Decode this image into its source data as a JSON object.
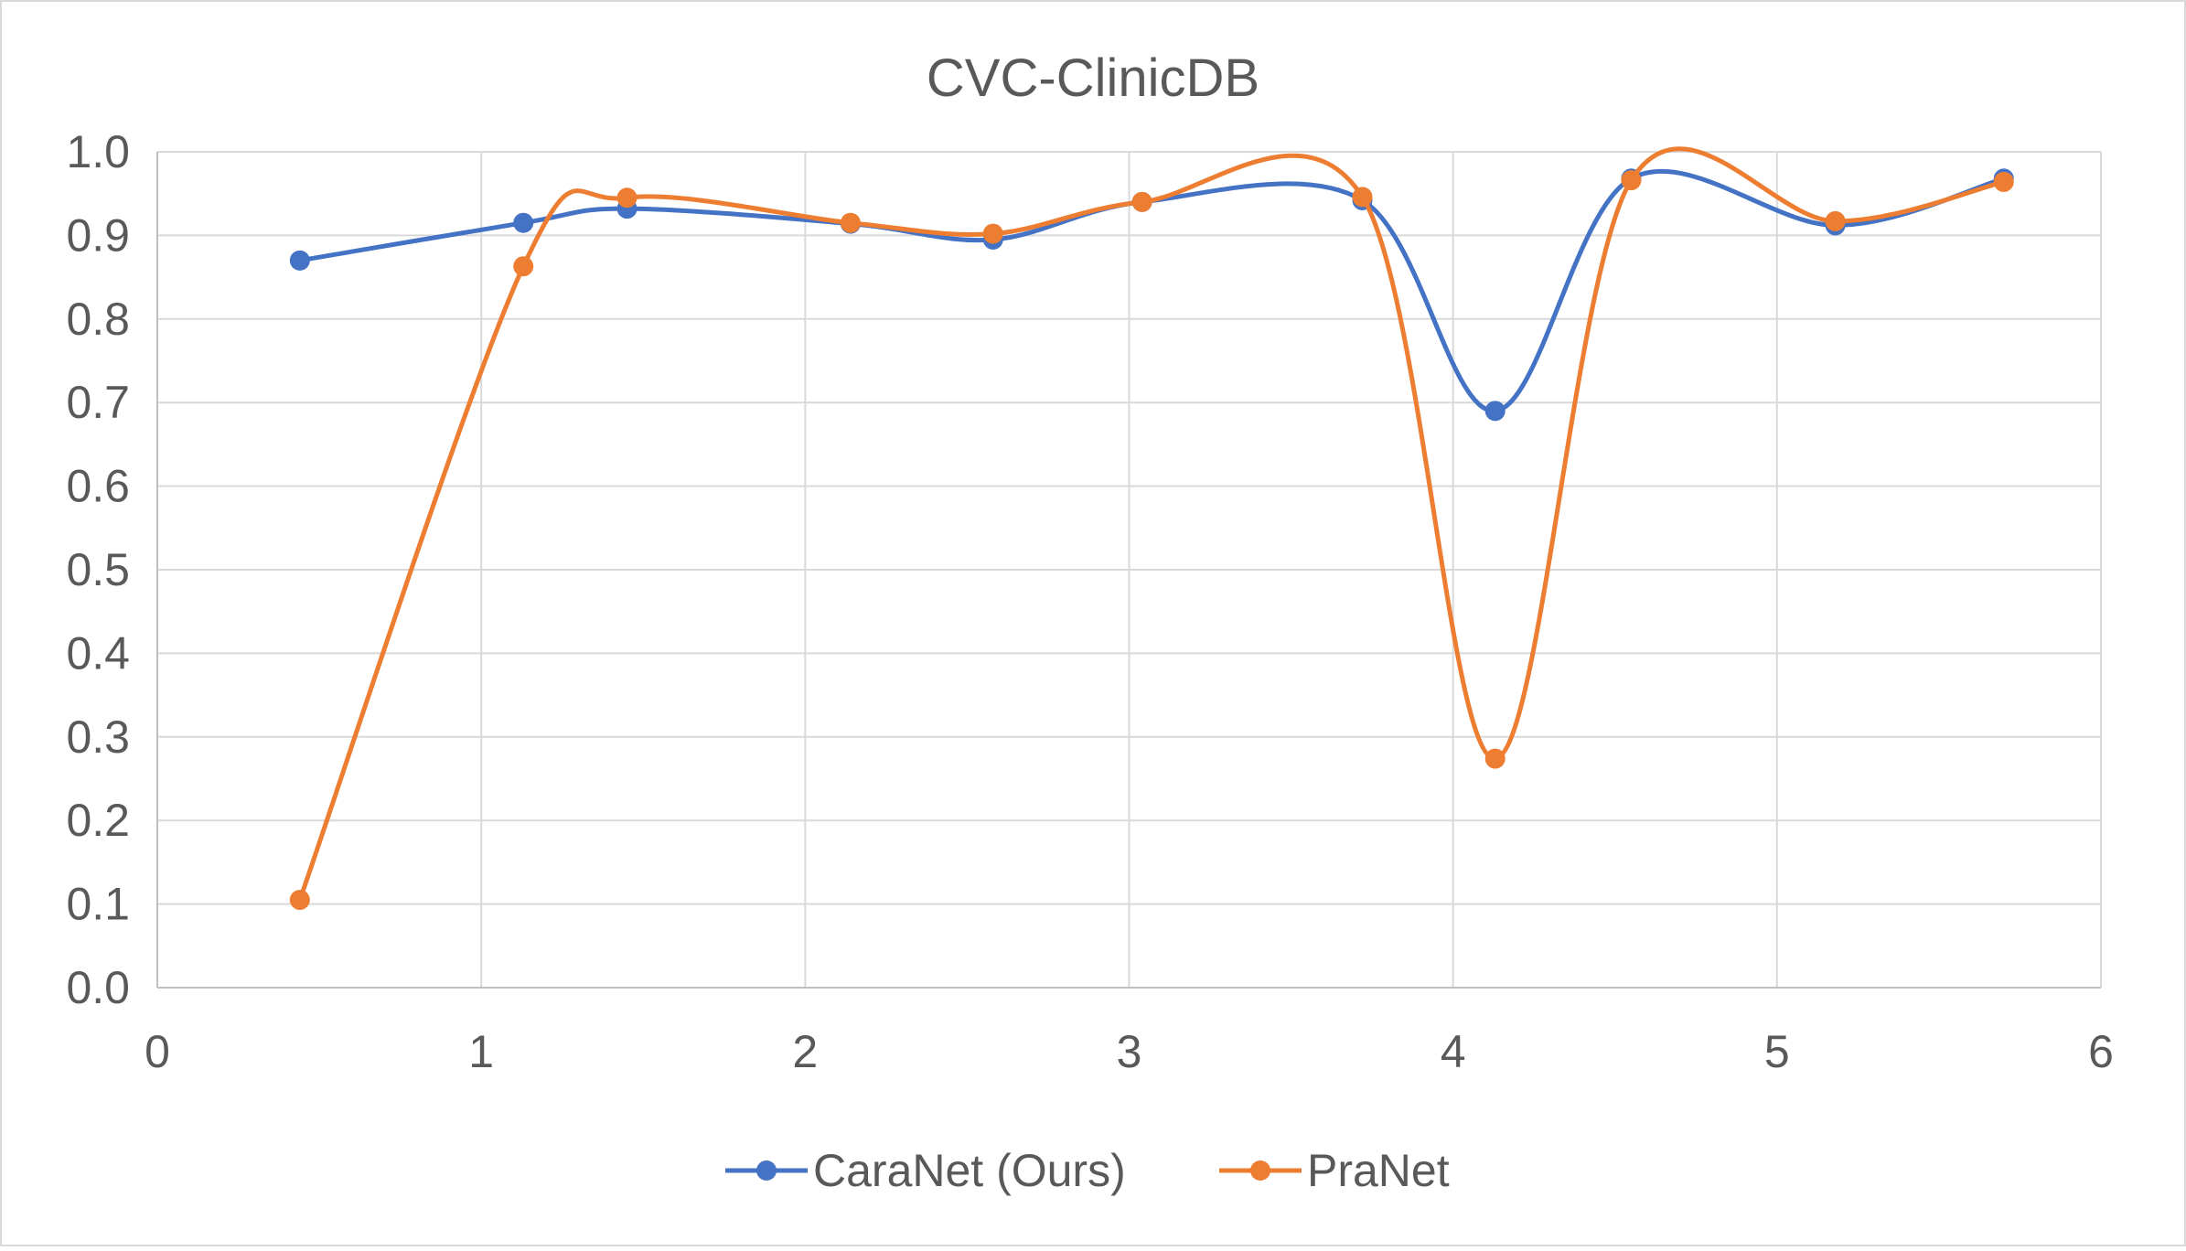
{
  "chart_data": {
    "type": "scatter",
    "title": "CVC-ClinicDB",
    "xlabel": "",
    "ylabel": "",
    "xlim": [
      0,
      6
    ],
    "ylim": [
      0.0,
      1.0
    ],
    "x_ticks": [
      "0",
      "1",
      "2",
      "3",
      "4",
      "5",
      "6"
    ],
    "y_ticks": [
      "0.0",
      "0.1",
      "0.2",
      "0.3",
      "0.4",
      "0.5",
      "0.6",
      "0.7",
      "0.8",
      "0.9",
      "1.0"
    ],
    "grid": true,
    "legend_position": "bottom",
    "smoothed_lines": true,
    "series": [
      {
        "name": "CaraNet (Ours)",
        "color": "#4472C4",
        "points": [
          {
            "x": 0.44,
            "y": 0.87
          },
          {
            "x": 1.13,
            "y": 0.915
          },
          {
            "x": 1.45,
            "y": 0.932
          },
          {
            "x": 2.14,
            "y": 0.914
          },
          {
            "x": 2.58,
            "y": 0.895
          },
          {
            "x": 3.04,
            "y": 0.94
          },
          {
            "x": 3.72,
            "y": 0.942
          },
          {
            "x": 4.13,
            "y": 0.69
          },
          {
            "x": 4.55,
            "y": 0.968
          },
          {
            "x": 5.18,
            "y": 0.912
          },
          {
            "x": 5.7,
            "y": 0.968
          }
        ]
      },
      {
        "name": "PraNet",
        "color": "#ED7D31",
        "points": [
          {
            "x": 0.44,
            "y": 0.105
          },
          {
            "x": 1.13,
            "y": 0.863
          },
          {
            "x": 1.45,
            "y": 0.945
          },
          {
            "x": 2.14,
            "y": 0.915
          },
          {
            "x": 2.58,
            "y": 0.902
          },
          {
            "x": 3.04,
            "y": 0.94
          },
          {
            "x": 3.72,
            "y": 0.946
          },
          {
            "x": 4.13,
            "y": 0.274
          },
          {
            "x": 4.55,
            "y": 0.966
          },
          {
            "x": 5.18,
            "y": 0.917
          },
          {
            "x": 5.7,
            "y": 0.964
          }
        ]
      }
    ]
  }
}
